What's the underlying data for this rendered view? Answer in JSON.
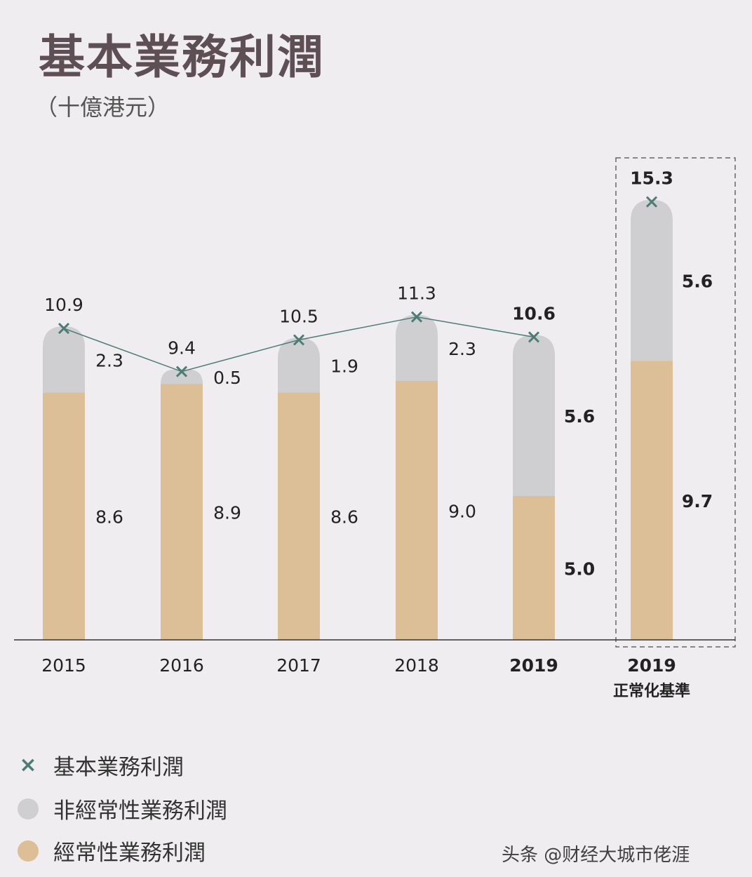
{
  "title": "基本業務利潤",
  "unit": "（十億港元）",
  "colors": {
    "recurring": "#dcbf96",
    "non_recurring": "#cfcfd2",
    "marker": "#4e7c74",
    "background": "#efedef"
  },
  "chart_data": {
    "type": "bar",
    "stacked": true,
    "categories": [
      "2015",
      "2016",
      "2017",
      "2018",
      "2019",
      "2019"
    ],
    "category_sublabels": [
      "",
      "",
      "",
      "",
      "",
      "正常化基準"
    ],
    "series": [
      {
        "name": "經常性業務利潤",
        "values": [
          8.6,
          8.9,
          8.6,
          9.0,
          5.0,
          9.7
        ]
      },
      {
        "name": "非經常性業務利潤",
        "values": [
          2.3,
          0.5,
          1.9,
          2.3,
          5.6,
          5.6
        ]
      }
    ],
    "line": {
      "name": "基本業務利潤",
      "values": [
        10.9,
        9.4,
        10.5,
        11.3,
        10.6,
        15.3
      ],
      "connected_points": 5
    },
    "labels": {
      "recurring": [
        "8.6",
        "8.9",
        "8.6",
        "9.0",
        "5.0",
        "9.7"
      ],
      "non_recurring": [
        "2.3",
        "0.5",
        "1.9",
        "2.3",
        "5.6",
        "5.6"
      ],
      "total": [
        "10.9",
        "9.4",
        "10.5",
        "11.3",
        "10.6",
        "15.3"
      ]
    },
    "bold_categories": [
      4,
      5
    ],
    "highlight_box_category": 5,
    "grid": false,
    "yaxis_visible": false,
    "legend_position": "bottom-left"
  },
  "legend": [
    {
      "label": "基本業務利潤",
      "icon": "x-marker"
    },
    {
      "label": "非經常性業務利潤",
      "icon": "gray-dot"
    },
    {
      "label": "經常性業務利潤",
      "icon": "tan-dot"
    }
  ],
  "watermark": "头条 @财经大城市佬涯"
}
